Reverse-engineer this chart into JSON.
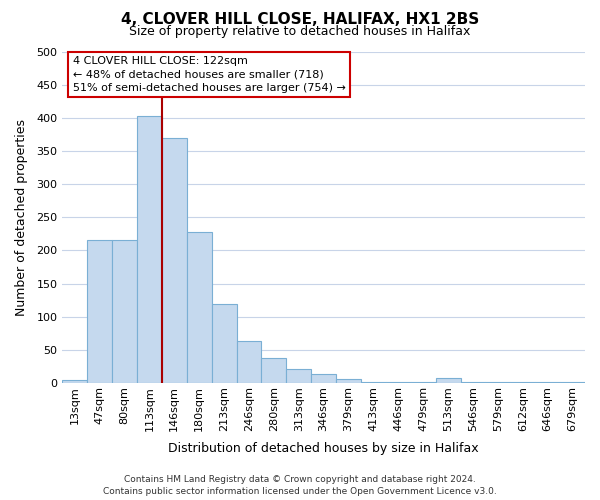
{
  "title": "4, CLOVER HILL CLOSE, HALIFAX, HX1 2BS",
  "subtitle": "Size of property relative to detached houses in Halifax",
  "xlabel": "Distribution of detached houses by size in Halifax",
  "ylabel": "Number of detached properties",
  "bar_color": "#c5d9ee",
  "bar_edge_color": "#7aafd4",
  "vline_color": "#aa0000",
  "vline_x_index": 3,
  "categories": [
    "13sqm",
    "47sqm",
    "80sqm",
    "113sqm",
    "146sqm",
    "180sqm",
    "213sqm",
    "246sqm",
    "280sqm",
    "313sqm",
    "346sqm",
    "379sqm",
    "413sqm",
    "446sqm",
    "479sqm",
    "513sqm",
    "546sqm",
    "579sqm",
    "612sqm",
    "646sqm",
    "679sqm"
  ],
  "values": [
    5,
    215,
    215,
    403,
    370,
    228,
    119,
    63,
    38,
    21,
    14,
    6,
    1,
    1,
    1,
    8,
    1,
    1,
    1,
    1,
    2
  ],
  "ylim": [
    0,
    500
  ],
  "yticks": [
    0,
    50,
    100,
    150,
    200,
    250,
    300,
    350,
    400,
    450,
    500
  ],
  "annotation_title": "4 CLOVER HILL CLOSE: 122sqm",
  "annotation_line1": "← 48% of detached houses are smaller (718)",
  "annotation_line2": "51% of semi-detached houses are larger (754) →",
  "annotation_box_facecolor": "#ffffff",
  "annotation_box_edgecolor": "#cc0000",
  "footer_line1": "Contains HM Land Registry data © Crown copyright and database right 2024.",
  "footer_line2": "Contains public sector information licensed under the Open Government Licence v3.0.",
  "background_color": "#ffffff",
  "grid_color": "#c8d4e8",
  "title_fontsize": 11,
  "subtitle_fontsize": 9,
  "axis_label_fontsize": 9,
  "tick_fontsize": 8,
  "annotation_fontsize": 8,
  "footer_fontsize": 6.5
}
